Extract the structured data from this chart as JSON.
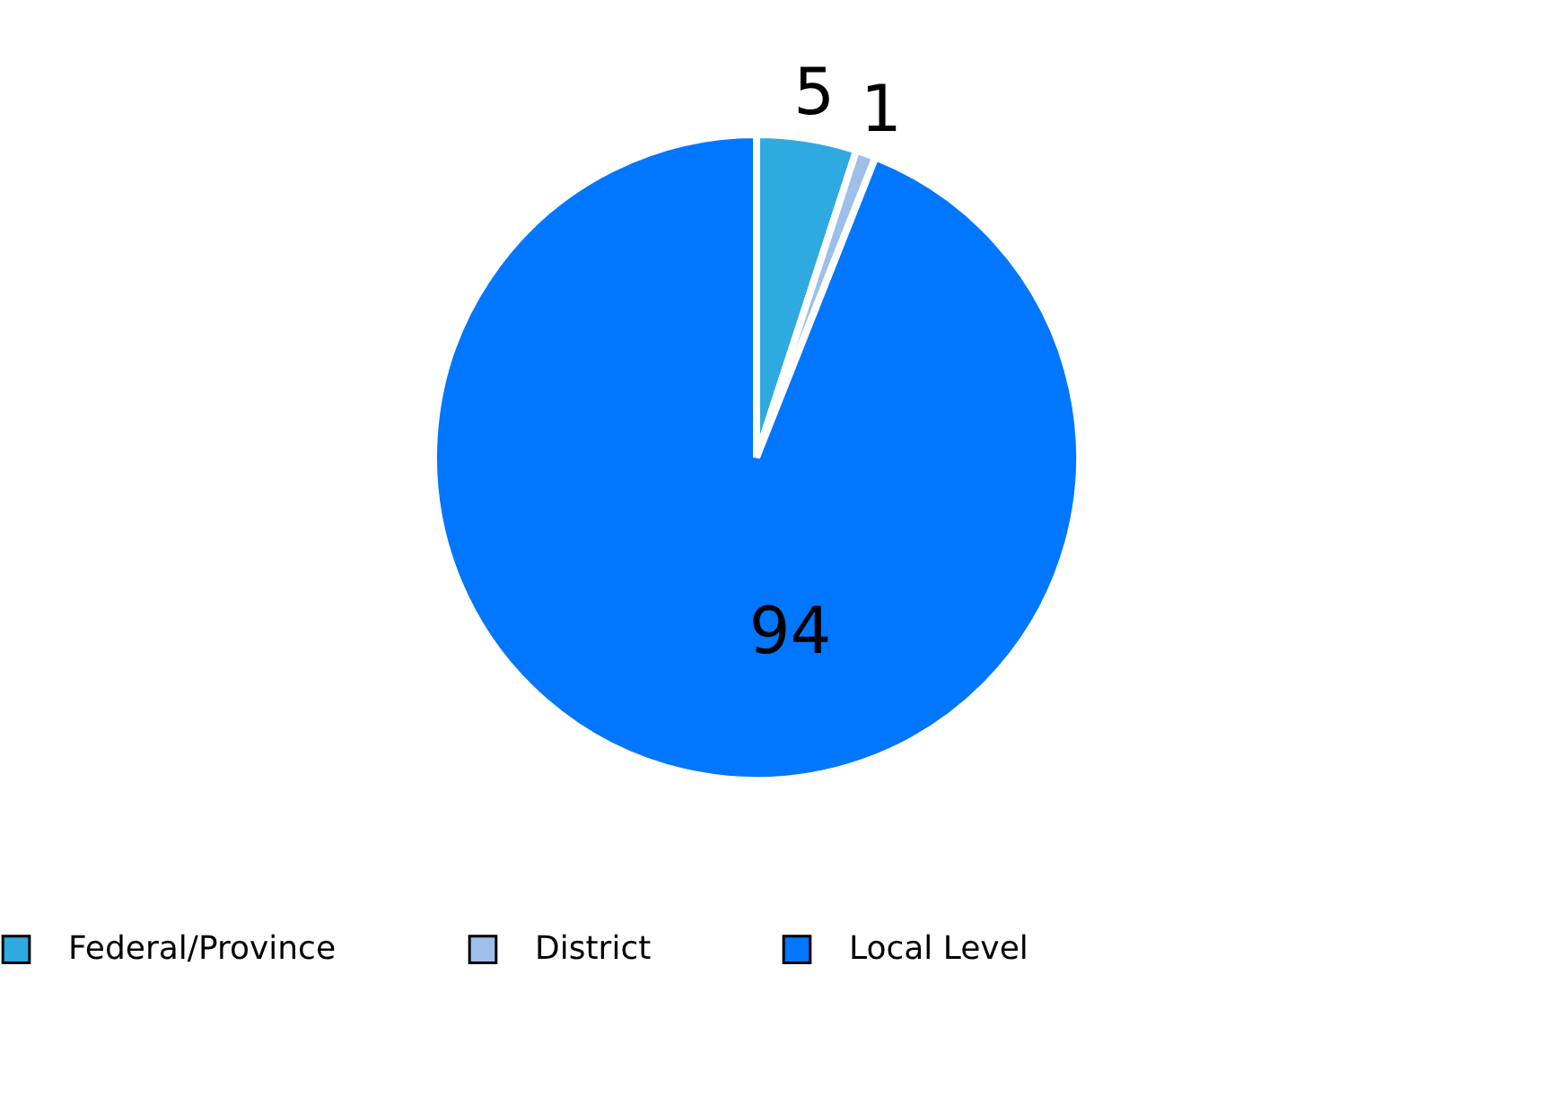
{
  "chart_data": {
    "type": "pie",
    "categories": [
      "Federal/Province",
      "District",
      "Local Level"
    ],
    "values": [
      5,
      1,
      94
    ],
    "colors": [
      "#2eaae1",
      "#9dbfea",
      "#0176ff"
    ],
    "data_labels": true,
    "legend": "bottom"
  }
}
